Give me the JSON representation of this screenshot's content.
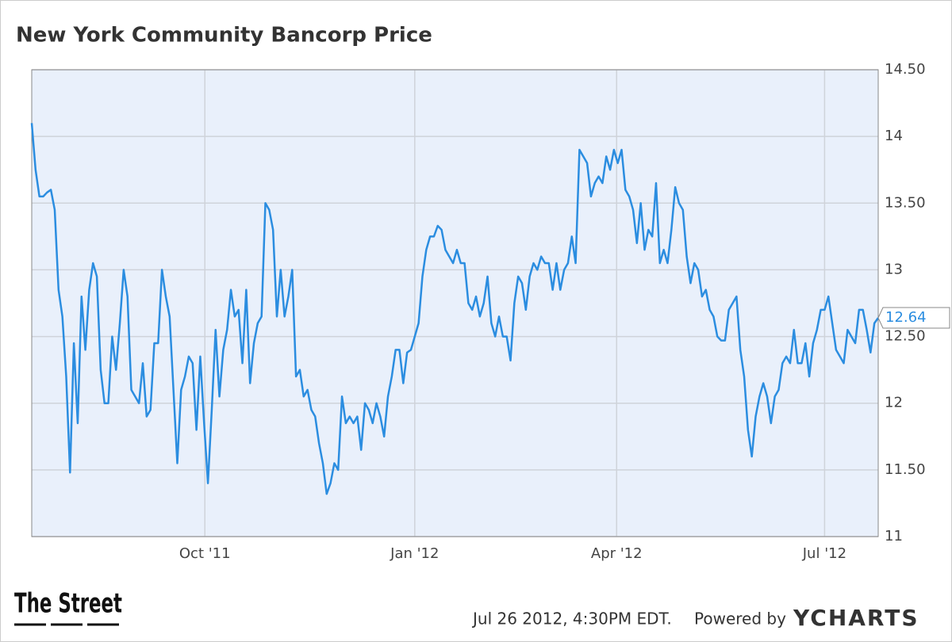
{
  "chart_data": {
    "type": "line",
    "title": "New York Community Bancorp Price",
    "color": "#2b8de0",
    "grid": true,
    "values": [
      14.1,
      13.75,
      13.55,
      13.55,
      13.58,
      13.6,
      13.45,
      12.85,
      12.65,
      12.2,
      11.48,
      12.45,
      11.85,
      12.8,
      12.4,
      12.85,
      13.05,
      12.95,
      12.25,
      12.0,
      12.0,
      12.5,
      12.25,
      12.6,
      13.0,
      12.8,
      12.1,
      12.05,
      12.0,
      12.3,
      11.9,
      11.95,
      12.45,
      12.45,
      13.0,
      12.8,
      12.65,
      12.1,
      11.55,
      12.1,
      12.2,
      12.35,
      12.3,
      11.8,
      12.35,
      11.85,
      11.4,
      11.95,
      12.55,
      12.05,
      12.4,
      12.55,
      12.85,
      12.65,
      12.7,
      12.3,
      12.85,
      12.15,
      12.45,
      12.6,
      12.65,
      13.5,
      13.45,
      13.3,
      12.65,
      13.0,
      12.65,
      12.8,
      13.0,
      12.2,
      12.25,
      12.05,
      12.1,
      11.95,
      11.9,
      11.7,
      11.55,
      11.32,
      11.4,
      11.55,
      11.5,
      12.05,
      11.85,
      11.9,
      11.85,
      11.9,
      11.65,
      12.0,
      11.95,
      11.85,
      12.0,
      11.9,
      11.75,
      12.05,
      12.2,
      12.4,
      12.4,
      12.15,
      12.38,
      12.4,
      12.5,
      12.6,
      12.95,
      13.15,
      13.25,
      13.25,
      13.33,
      13.3,
      13.15,
      13.1,
      13.05,
      13.15,
      13.05,
      13.05,
      12.75,
      12.7,
      12.8,
      12.65,
      12.75,
      12.95,
      12.6,
      12.5,
      12.65,
      12.5,
      12.5,
      12.32,
      12.75,
      12.95,
      12.9,
      12.7,
      12.95,
      13.05,
      13.0,
      13.1,
      13.05,
      13.05,
      12.85,
      13.05,
      12.85,
      13.0,
      13.05,
      13.25,
      13.05,
      13.9,
      13.85,
      13.8,
      13.55,
      13.65,
      13.7,
      13.65,
      13.85,
      13.75,
      13.9,
      13.8,
      13.9,
      13.6,
      13.55,
      13.45,
      13.2,
      13.5,
      13.15,
      13.3,
      13.25,
      13.65,
      13.05,
      13.15,
      13.05,
      13.3,
      13.62,
      13.5,
      13.45,
      13.1,
      12.9,
      13.05,
      13.0,
      12.8,
      12.85,
      12.7,
      12.65,
      12.5,
      12.47,
      12.47,
      12.7,
      12.75,
      12.8,
      12.4,
      12.2,
      11.8,
      11.6,
      11.9,
      12.05,
      12.15,
      12.05,
      11.85,
      12.05,
      12.1,
      12.3,
      12.35,
      12.3,
      12.55,
      12.3,
      12.3,
      12.45,
      12.2,
      12.45,
      12.55,
      12.7,
      12.7,
      12.8,
      12.6,
      12.4,
      12.35,
      12.3,
      12.55,
      12.5,
      12.45,
      12.7,
      12.7,
      12.55,
      12.38,
      12.6,
      12.64
    ],
    "xlim": [
      0,
      221
    ],
    "xticks": [
      {
        "value": 45.2,
        "label": "Oct '11"
      },
      {
        "value": 100,
        "label": "Jan '12"
      },
      {
        "value": 152.7,
        "label": "Apr '12"
      },
      {
        "value": 207,
        "label": "Jul '12"
      }
    ],
    "ylim": [
      11,
      14.5
    ],
    "yticks": [
      {
        "value": 14.5,
        "label": "14.50"
      },
      14,
      {
        "value": 13.5,
        "label": "13.50"
      },
      13,
      {
        "value": 12.5,
        "label": "12.50"
      },
      12,
      {
        "value": 11.5,
        "label": "11.50"
      },
      11
    ],
    "source_logo": "The Street",
    "timestamp": "Jul 26 2012, 4:30PM EDT.",
    "credit": "Powered by",
    "brand": "YCHARTS"
  }
}
